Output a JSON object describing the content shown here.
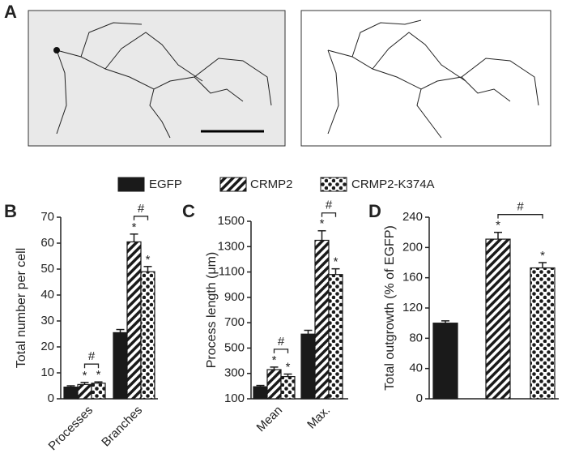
{
  "figure": {
    "panel_a_label": "A"
  },
  "chart_data": [
    {
      "type": "bar",
      "panel_label": "B",
      "y_label": "Total number per cell",
      "categories": [
        "Processes",
        "Branches"
      ],
      "series": [
        {
          "name": "EGFP",
          "color": "#1a1a1a",
          "pattern": "solid",
          "values": [
            4.5,
            25.5
          ],
          "errors": [
            0.5,
            1.2
          ]
        },
        {
          "name": "CRMP2",
          "color": "#1a1a1a",
          "pattern": "stripes",
          "values": [
            5.5,
            60.5
          ],
          "errors": [
            0.8,
            3
          ],
          "star_labels": [
            "*",
            "*"
          ]
        },
        {
          "name": "CRMP2-K374A",
          "color": "#1a1a1a",
          "pattern": "dots",
          "values": [
            6,
            49
          ],
          "errors": [
            0.5,
            2
          ],
          "star_labels": [
            "*",
            "*"
          ]
        }
      ],
      "hash_labels": [
        "#",
        "#"
      ],
      "ylim": [
        0,
        70
      ],
      "yticks": [
        0,
        10,
        20,
        30,
        40,
        50,
        60,
        70
      ]
    },
    {
      "type": "bar",
      "panel_label": "C",
      "y_label": "Process length (μm)",
      "categories": [
        "Mean",
        "Max."
      ],
      "series": [
        {
          "name": "EGFP",
          "color": "#1a1a1a",
          "pattern": "solid",
          "values": [
            195,
            610
          ],
          "errors": [
            10,
            30
          ]
        },
        {
          "name": "CRMP2",
          "color": "#1a1a1a",
          "pattern": "stripes",
          "values": [
            330,
            1350
          ],
          "errors": [
            20,
            75
          ],
          "star_labels": [
            "*",
            "*"
          ]
        },
        {
          "name": "CRMP2-K374A",
          "color": "#1a1a1a",
          "pattern": "dots",
          "values": [
            275,
            1080
          ],
          "errors": [
            20,
            45
          ],
          "star_labels": [
            "*",
            "*"
          ]
        }
      ],
      "hash_labels": [
        "#",
        "#"
      ],
      "ylim": [
        100,
        1500
      ],
      "yticks": [
        100,
        300,
        500,
        700,
        900,
        1100,
        1300,
        1500
      ]
    },
    {
      "type": "bar",
      "panel_label": "D",
      "y_label": "Total outgrowth (% of EGFP)",
      "categories": [
        null
      ],
      "series": [
        {
          "name": "EGFP",
          "color": "#1a1a1a",
          "pattern": "solid",
          "values": [
            100
          ],
          "errors": [
            3
          ]
        },
        {
          "name": "CRMP2",
          "color": "#1a1a1a",
          "pattern": "stripes",
          "values": [
            211
          ],
          "errors": [
            9
          ],
          "star_labels": [
            "*"
          ]
        },
        {
          "name": "CRMP2-K374A",
          "color": "#1a1a1a",
          "pattern": "dots",
          "values": [
            173
          ],
          "errors": [
            7
          ],
          "star_labels": [
            "*"
          ]
        }
      ],
      "hash_labels": [
        "#"
      ],
      "ylim": [
        0,
        240
      ],
      "yticks": [
        0,
        40,
        80,
        120,
        160,
        200,
        240
      ]
    }
  ]
}
